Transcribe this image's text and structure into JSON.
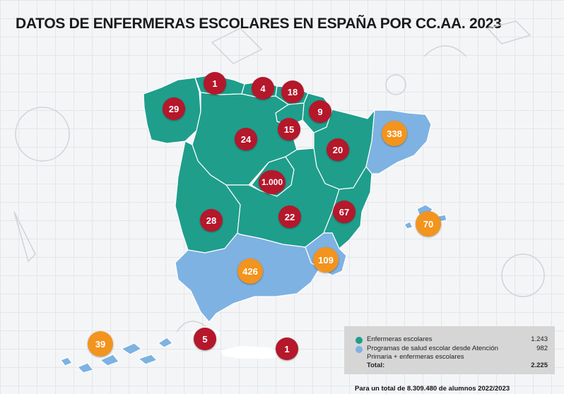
{
  "title": "DATOS DE ENFERMERAS ESCOLARES EN ESPAÑA POR CC.AA. 2023",
  "colors": {
    "nurses_region": "#1f9e8c",
    "programs_region": "#7eb2e2",
    "marker_red": "#b5172b",
    "marker_orange": "#f2941e"
  },
  "regions": [
    {
      "name": "Galicia",
      "value": "29",
      "marker": "red"
    },
    {
      "name": "Asturias",
      "value": "1",
      "marker": "red"
    },
    {
      "name": "Cantabria",
      "value": "4",
      "marker": "red"
    },
    {
      "name": "País Vasco",
      "value": "18",
      "marker": "red"
    },
    {
      "name": "Navarra",
      "value": "9",
      "marker": "red"
    },
    {
      "name": "La Rioja",
      "value": "15",
      "marker": "red"
    },
    {
      "name": "Castilla y León",
      "value": "24",
      "marker": "red"
    },
    {
      "name": "Aragón",
      "value": "20",
      "marker": "red"
    },
    {
      "name": "Cataluña",
      "value": "338",
      "marker": "orange"
    },
    {
      "name": "Madrid",
      "value": "1.000",
      "marker": "red"
    },
    {
      "name": "Extremadura",
      "value": "28",
      "marker": "red"
    },
    {
      "name": "Castilla-La Mancha",
      "value": "22",
      "marker": "red"
    },
    {
      "name": "Comunidad Valenciana",
      "value": "67",
      "marker": "red"
    },
    {
      "name": "Islas Baleares",
      "value": "70",
      "marker": "orange"
    },
    {
      "name": "Región de Murcia",
      "value": "109",
      "marker": "orange"
    },
    {
      "name": "Andalucía",
      "value": "426",
      "marker": "orange"
    },
    {
      "name": "Canarias",
      "value": "39",
      "marker": "orange"
    },
    {
      "name": "Ceuta",
      "value": "5",
      "marker": "red"
    },
    {
      "name": "Melilla",
      "value": "1",
      "marker": "red"
    }
  ],
  "legend": {
    "items": [
      {
        "label": "Enfermeras escolares",
        "value": "1.243",
        "color": "#1f9e8c"
      },
      {
        "label": "Programas de salud escolar desde Atención",
        "label2": "Primaria + enfermeras escolares",
        "value": "982",
        "color": "#7eb2e2"
      }
    ],
    "total_label": "Total:",
    "total_value": "2.225"
  },
  "footnote": "Para un total de 8.309.480 de alumnos 2022/2023"
}
